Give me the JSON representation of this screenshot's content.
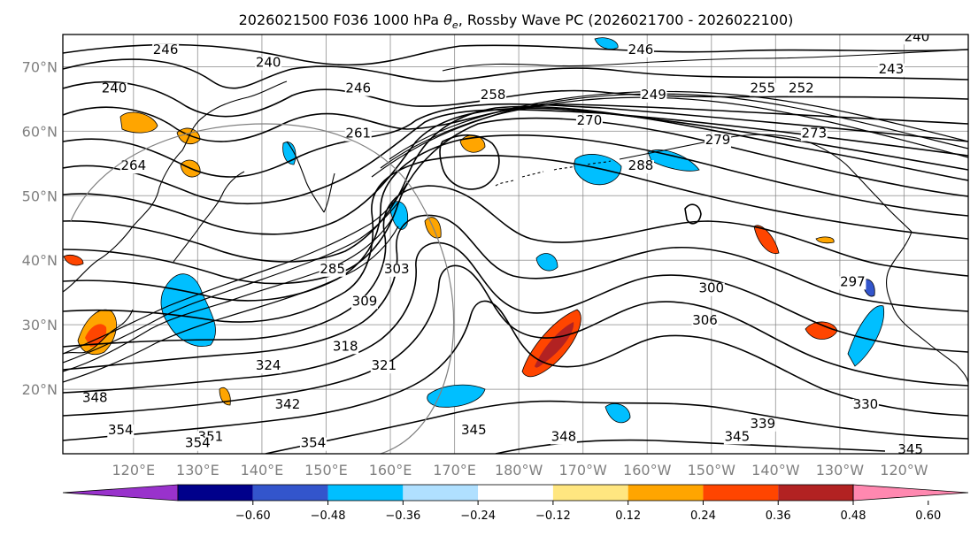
{
  "chart_data": {
    "type": "contour_map",
    "title_prefix": "2026021500 F036 1000 hPa ",
    "title_theta": "θ",
    "title_sub": "e",
    "title_suffix": ", Rossby Wave PC (2026021700 - 2026022100)",
    "latitude_ticks": [
      {
        "label": "70°N",
        "lat": 70
      },
      {
        "label": "60°N",
        "lat": 60
      },
      {
        "label": "50°N",
        "lat": 50
      },
      {
        "label": "40°N",
        "lat": 40
      },
      {
        "label": "30°N",
        "lat": 30
      },
      {
        "label": "20°N",
        "lat": 20
      }
    ],
    "longitude_ticks": [
      {
        "label": "120°E",
        "lon": 120
      },
      {
        "label": "130°E",
        "lon": 130
      },
      {
        "label": "140°E",
        "lon": 140
      },
      {
        "label": "150°E",
        "lon": 150
      },
      {
        "label": "160°E",
        "lon": 160
      },
      {
        "label": "170°E",
        "lon": 170
      },
      {
        "label": "180°W",
        "lon": 180
      },
      {
        "label": "170°W",
        "lon": 190
      },
      {
        "label": "160°W",
        "lon": 200
      },
      {
        "label": "150°W",
        "lon": 210
      },
      {
        "label": "140°W",
        "lon": 220
      },
      {
        "label": "130°W",
        "lon": 230
      },
      {
        "label": "120°W",
        "lon": 240
      }
    ],
    "lon_range": [
      109,
      250
    ],
    "lat_range": [
      10,
      75
    ],
    "contour_labels": [
      {
        "text": "246",
        "lon": 125,
        "lat": 72
      },
      {
        "text": "240",
        "lon": 117,
        "lat": 66
      },
      {
        "text": "240",
        "lon": 141,
        "lat": 70
      },
      {
        "text": "246",
        "lon": 155,
        "lat": 66
      },
      {
        "text": "264",
        "lon": 120,
        "lat": 54
      },
      {
        "text": "261",
        "lon": 155,
        "lat": 59
      },
      {
        "text": "285",
        "lon": 151,
        "lat": 38
      },
      {
        "text": "303",
        "lon": 161,
        "lat": 38
      },
      {
        "text": "309",
        "lon": 156,
        "lat": 33
      },
      {
        "text": "318",
        "lon": 153,
        "lat": 26
      },
      {
        "text": "321",
        "lon": 159,
        "lat": 23
      },
      {
        "text": "324",
        "lon": 141,
        "lat": 23
      },
      {
        "text": "342",
        "lon": 144,
        "lat": 17
      },
      {
        "text": "345",
        "lon": 173,
        "lat": 13
      },
      {
        "text": "348",
        "lon": 187,
        "lat": 12
      },
      {
        "text": "351",
        "lon": 132,
        "lat": 12
      },
      {
        "text": "354",
        "lon": 118,
        "lat": 13
      },
      {
        "text": "354",
        "lon": 130,
        "lat": 11
      },
      {
        "text": "354",
        "lon": 148,
        "lat": 11
      },
      {
        "text": "345",
        "lon": 214,
        "lat": 12
      },
      {
        "text": "339",
        "lon": 218,
        "lat": 14
      },
      {
        "text": "330",
        "lon": 234,
        "lat": 17
      },
      {
        "text": "345",
        "lon": 241,
        "lat": 10
      },
      {
        "text": "300",
        "lon": 210,
        "lat": 35
      },
      {
        "text": "306",
        "lon": 209,
        "lat": 30
      },
      {
        "text": "297",
        "lon": 232,
        "lat": 36
      },
      {
        "text": "279",
        "lon": 211,
        "lat": 58
      },
      {
        "text": "273",
        "lon": 226,
        "lat": 59
      },
      {
        "text": "270",
        "lon": 191,
        "lat": 61
      },
      {
        "text": "249",
        "lon": 201,
        "lat": 65
      },
      {
        "text": "246",
        "lon": 199,
        "lat": 72
      },
      {
        "text": "252",
        "lon": 224,
        "lat": 66
      },
      {
        "text": "255",
        "lon": 218,
        "lat": 66
      },
      {
        "text": "243",
        "lon": 238,
        "lat": 69
      },
      {
        "text": "258",
        "lon": 176,
        "lat": 65
      },
      {
        "text": "240",
        "lon": 242,
        "lat": 74
      },
      {
        "text": "348",
        "lon": 114,
        "lat": 18
      },
      {
        "text": "288",
        "lon": 199,
        "lat": 54
      }
    ],
    "colorbar": {
      "levels": [
        "−0.60",
        "−0.48",
        "−0.36",
        "−0.24",
        "−0.12",
        "0.12",
        "0.24",
        "0.36",
        "0.48",
        "0.60"
      ],
      "colors": [
        "#9932cc",
        "#00008b",
        "#3355cc",
        "#00bfff",
        "#b0e0ff",
        "#ffffff",
        "#ffe680",
        "#ffa500",
        "#ff4500",
        "#b22222",
        "#ff88b0"
      ]
    }
  }
}
